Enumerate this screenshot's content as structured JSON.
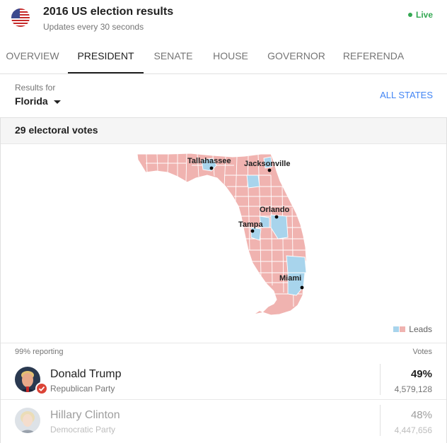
{
  "header": {
    "title": "2016 US election results",
    "subtitle": "Updates every 30 seconds",
    "live_label": "Live"
  },
  "tabs": [
    {
      "label": "OVERVIEW"
    },
    {
      "label": "PRESIDENT",
      "active": true
    },
    {
      "label": "SENATE"
    },
    {
      "label": "HOUSE"
    },
    {
      "label": "GOVERNOR"
    },
    {
      "label": "REFERENDA"
    }
  ],
  "filter": {
    "label": "Results for",
    "value": "Florida",
    "all_states": "ALL STATES"
  },
  "card": {
    "electoral_votes": "29 electoral votes"
  },
  "map": {
    "cities": [
      {
        "name": "Tallahassee"
      },
      {
        "name": "Jacksonville"
      },
      {
        "name": "Orlando"
      },
      {
        "name": "Tampa"
      },
      {
        "name": "Miami"
      }
    ],
    "legend_label": "Leads",
    "colors": {
      "republican": "#f0b3b0",
      "democrat": "#a8d4ec",
      "border": "#ffffff"
    }
  },
  "results": {
    "reporting": "99% reporting",
    "votes_header": "Votes",
    "candidates": [
      {
        "name": "Donald Trump",
        "party": "Republican Party",
        "pct": "49%",
        "votes": "4,579,128",
        "winner": true
      },
      {
        "name": "Hillary Clinton",
        "party": "Democratic Party",
        "pct": "48%",
        "votes": "4,447,656",
        "winner": false
      }
    ]
  },
  "icons": {
    "flag": "us-flag-icon",
    "dropdown": "caret-down-icon",
    "winner": "checkmark-icon"
  }
}
